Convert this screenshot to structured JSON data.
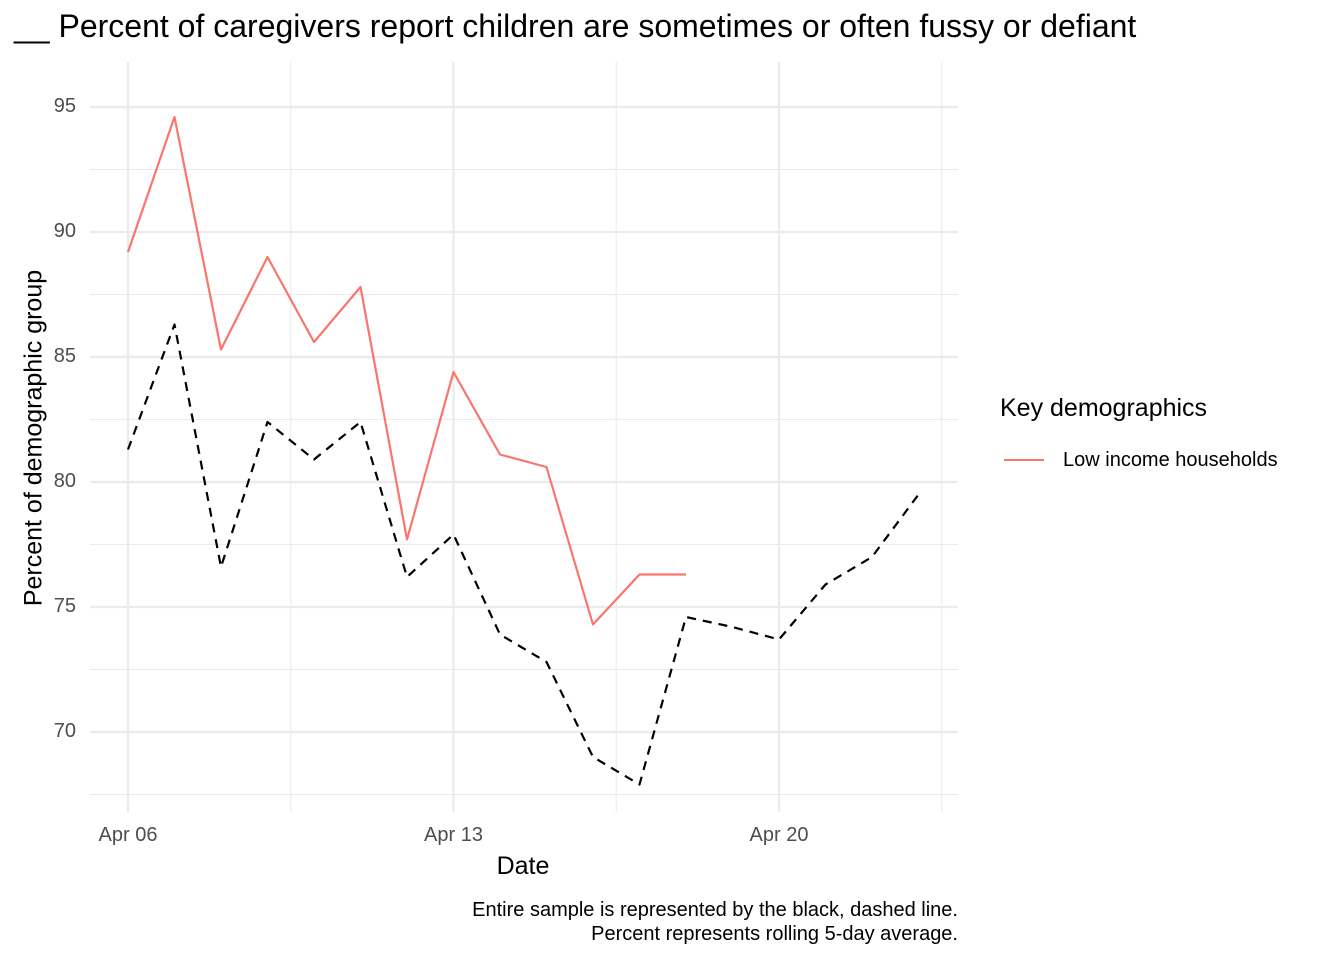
{
  "title": "__ Percent of caregivers report children are sometimes or often fussy or defiant",
  "chart_data": {
    "type": "line",
    "title": "__ Percent of caregivers report children are sometimes or often fussy or defiant",
    "xlabel": "Date",
    "ylabel": "Percent of demographic group",
    "caption_lines": [
      "Entire sample is represented by the black, dashed line.",
      "Percent represents rolling 5-day average."
    ],
    "x_ticks": [
      "Apr 06",
      "Apr 13",
      "Apr 20"
    ],
    "y_ticks": [
      70,
      75,
      80,
      85,
      90,
      95
    ],
    "ylim": [
      66.8,
      96.8
    ],
    "x_dates": [
      "Apr 06",
      "Apr 07",
      "Apr 08",
      "Apr 09",
      "Apr 10",
      "Apr 11",
      "Apr 12",
      "Apr 13",
      "Apr 14",
      "Apr 15",
      "Apr 16",
      "Apr 17",
      "Apr 18",
      "Apr 19",
      "Apr 20",
      "Apr 21",
      "Apr 22",
      "Apr 23"
    ],
    "grid": true,
    "legend_position": "right",
    "legend_title": "Key demographics",
    "series": [
      {
        "name": "Low income households",
        "color": "#F8766D",
        "dashed": false,
        "values": [
          89.2,
          94.6,
          85.3,
          89.0,
          85.6,
          87.8,
          77.7,
          84.4,
          81.1,
          80.6,
          74.3,
          76.3,
          76.3
        ]
      },
      {
        "color": "#000000",
        "dashed": true,
        "values": [
          81.3,
          86.3,
          76.6,
          82.4,
          80.9,
          82.4,
          76.2,
          77.9,
          73.9,
          72.8,
          69.0,
          67.9,
          74.6,
          74.2,
          73.7,
          75.9,
          77.0,
          79.5
        ]
      }
    ]
  }
}
